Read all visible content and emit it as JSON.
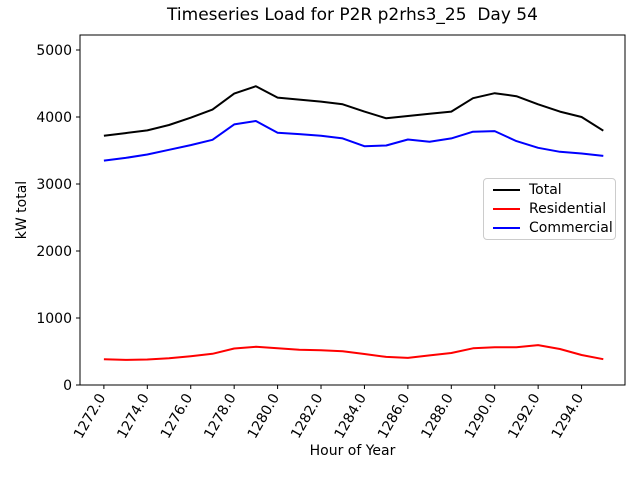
{
  "figure": {
    "title": "Timeseries Load for P2R p2rhs3_25  Day 54",
    "xlabel": "Hour of Year",
    "ylabel": "kW total",
    "background_color": "#ffffff",
    "spine_color": "#000000"
  },
  "chart_data": {
    "type": "line",
    "title": "Timeseries Load for P2R p2rhs3_25  Day 54",
    "xlabel": "Hour of Year",
    "ylabel": "kW total",
    "grid": false,
    "legend_position": "center right",
    "xlim": [
      1270.9,
      1296.0
    ],
    "ylim": [
      0,
      5224
    ],
    "xticks": [
      1272,
      1274,
      1276,
      1278,
      1280,
      1282,
      1284,
      1286,
      1288,
      1290,
      1292,
      1294
    ],
    "xtick_labels": [
      "1272.0",
      "1274.0",
      "1276.0",
      "1278.0",
      "1280.0",
      "1282.0",
      "1284.0",
      "1286.0",
      "1288.0",
      "1290.0",
      "1292.0",
      "1294.0"
    ],
    "yticks": [
      0,
      1000,
      2000,
      3000,
      4000,
      5000
    ],
    "ytick_labels": [
      "0",
      "1000",
      "2000",
      "3000",
      "4000",
      "5000"
    ],
    "x": [
      1272,
      1273,
      1274,
      1275,
      1276,
      1277,
      1278,
      1279,
      1280,
      1281,
      1282,
      1283,
      1284,
      1285,
      1286,
      1287,
      1288,
      1289,
      1290,
      1291,
      1292,
      1293,
      1294,
      1295
    ],
    "series": [
      {
        "name": "Total",
        "color": "#000000",
        "values": [
          3720,
          3760,
          3800,
          3880,
          3990,
          4110,
          4350,
          4460,
          4290,
          4260,
          4230,
          4190,
          4080,
          3980,
          4015,
          4050,
          4080,
          4280,
          4355,
          4310,
          4190,
          4080,
          4000,
          3795
        ]
      },
      {
        "name": "Residential",
        "color": "#ff0000",
        "values": [
          385,
          375,
          380,
          400,
          430,
          465,
          545,
          570,
          548,
          525,
          520,
          505,
          462,
          420,
          405,
          442,
          478,
          548,
          562,
          562,
          595,
          538,
          448,
          385
        ]
      },
      {
        "name": "Commercial",
        "color": "#0000ff",
        "values": [
          3350,
          3390,
          3440,
          3510,
          3580,
          3660,
          3890,
          3940,
          3765,
          3745,
          3720,
          3680,
          3565,
          3575,
          3665,
          3630,
          3680,
          3780,
          3790,
          3640,
          3540,
          3480,
          3455,
          3420
        ]
      }
    ]
  },
  "legend": {
    "entries": [
      {
        "label": "Total",
        "color": "#000000"
      },
      {
        "label": "Residential",
        "color": "#ff0000"
      },
      {
        "label": "Commercial",
        "color": "#0000ff"
      }
    ]
  }
}
